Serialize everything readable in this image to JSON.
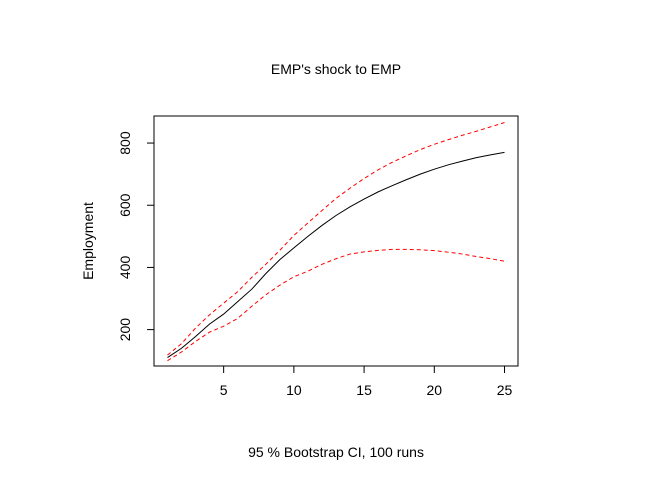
{
  "chart_data": {
    "type": "line",
    "title": "EMP's shock to EMP",
    "xlabel": "95 % Bootstrap CI,  100 runs",
    "ylabel": "Employment",
    "xlim": [
      0.04,
      25.96
    ],
    "ylim": [
      83,
      887
    ],
    "x_ticks": [
      5,
      10,
      15,
      20,
      25
    ],
    "y_ticks": [
      200,
      400,
      600,
      800
    ],
    "grid": false,
    "legend": "none",
    "x": [
      1,
      2,
      3,
      4,
      5,
      6,
      7,
      8,
      9,
      10,
      11,
      12,
      13,
      14,
      15,
      16,
      17,
      18,
      19,
      20,
      21,
      22,
      23,
      24,
      25
    ],
    "series": [
      {
        "style": "solid",
        "color": "#000000",
        "values": [
          110,
          140,
          178,
          218,
          250,
          290,
          330,
          380,
          425,
          463,
          500,
          535,
          567,
          595,
          620,
          643,
          663,
          682,
          700,
          716,
          730,
          742,
          753,
          762,
          770
        ]
      },
      {
        "style": "dashed",
        "color": "#ff0000",
        "values": [
          118,
          155,
          205,
          248,
          285,
          322,
          368,
          410,
          455,
          503,
          543,
          583,
          622,
          655,
          686,
          714,
          738,
          759,
          779,
          796,
          811,
          825,
          838,
          852,
          866
        ]
      },
      {
        "style": "dashed",
        "color": "#ff0000",
        "values": [
          100,
          128,
          162,
          192,
          211,
          236,
          275,
          312,
          343,
          370,
          388,
          410,
          428,
          443,
          450,
          455,
          458,
          458,
          457,
          454,
          449,
          443,
          435,
          428,
          420
        ]
      }
    ]
  }
}
